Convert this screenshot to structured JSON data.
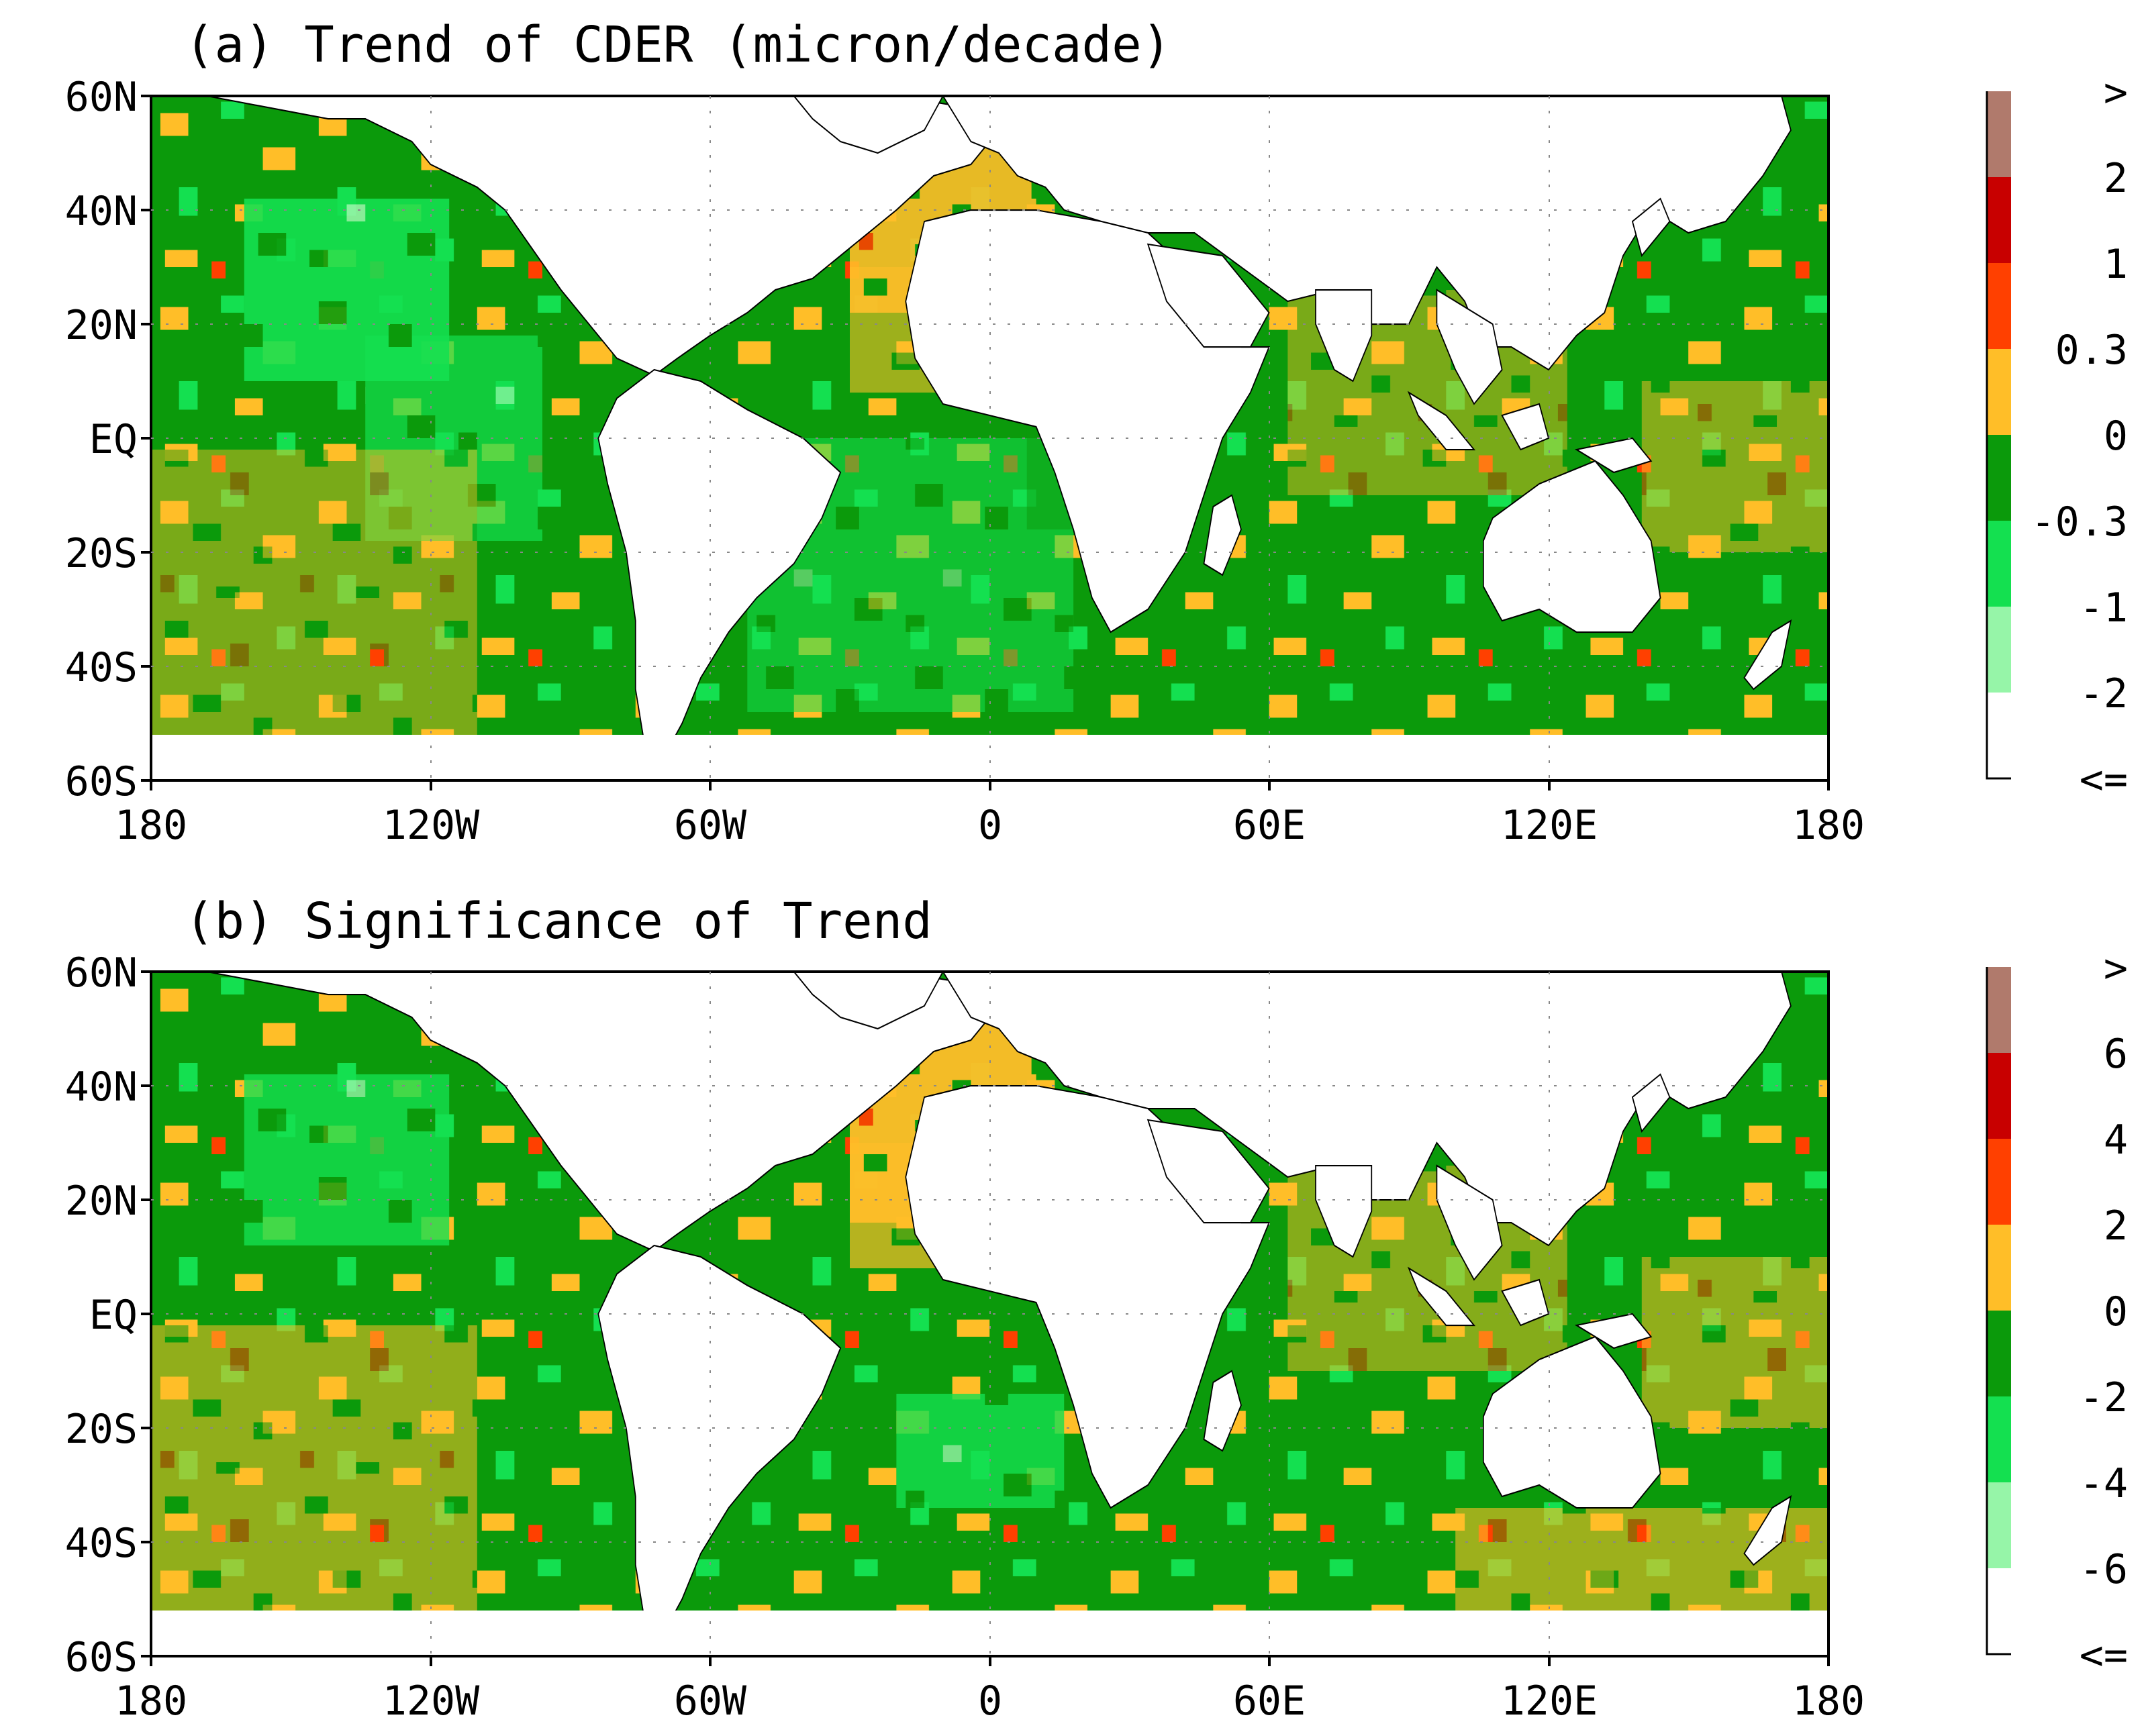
{
  "panels": [
    {
      "title": "(a) Trend of CDER (micron/decade)",
      "lat_labels": [
        "60N",
        "40N",
        "20N",
        "EQ",
        "20S",
        "40S",
        "60S"
      ],
      "lon_labels": [
        "180",
        "120W",
        "60W",
        "0",
        "60E",
        "120E",
        "180"
      ],
      "colorbar": {
        "labels": [
          ">",
          "2",
          "1",
          "0.3",
          "0",
          "-0.3",
          "-1",
          "-2",
          "<="
        ],
        "colors": [
          "#b07a6c",
          "#c80000",
          "#ff4000",
          "#ffbe28",
          "#0b9a0b",
          "#14e050",
          "#96f5a8",
          "#ffffff"
        ]
      }
    },
    {
      "title": "(b) Significance of Trend",
      "lat_labels": [
        "60N",
        "40N",
        "20N",
        "EQ",
        "20S",
        "40S",
        "60S"
      ],
      "lon_labels": [
        "180",
        "120W",
        "60W",
        "0",
        "60E",
        "120E",
        "180"
      ],
      "colorbar": {
        "labels": [
          ">",
          "6",
          "4",
          "2",
          "0",
          "-2",
          "-4",
          "-6",
          "<="
        ],
        "colors": [
          "#b07a6c",
          "#c80000",
          "#ff4000",
          "#ffbe28",
          "#0b9a0b",
          "#14e050",
          "#96f5a8",
          "#ffffff"
        ]
      }
    }
  ],
  "colors": {
    "ocean_dark_green": "#0b9a0b",
    "ocean_light_green": "#14e050",
    "ocean_pale_green": "#96f5a8",
    "orange": "#ffbe28",
    "red_orange": "#ff4000",
    "red": "#c80000",
    "land": "#ffffff"
  }
}
